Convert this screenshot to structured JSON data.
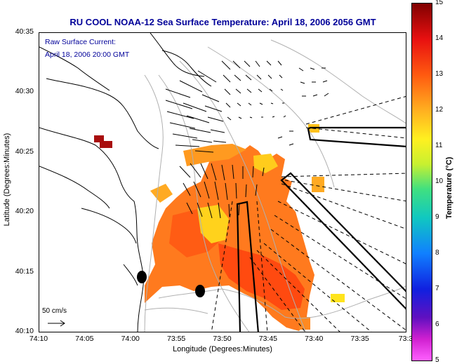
{
  "title": "RU COOL  NOAA-12  Sea Surface Temperature:  April 18, 2006 2056 GMT",
  "annotation": {
    "line1": "Raw Surface Current:",
    "line2": "April 18, 2006 20:00 GMT"
  },
  "scale_label": "50 cm/s",
  "colors": {
    "title": "#000099",
    "annotation": "#000099",
    "land_outline": "#000000",
    "bathymetry": "#b0b0b0"
  },
  "chart_data": {
    "type": "heatmap",
    "title": "RU COOL  NOAA-12  Sea Surface Temperature:  April 18, 2006 2056 GMT",
    "xlabel": "Longitude (Degrees:Minutes)",
    "ylabel": "Latitude (Degrees:Minutes)",
    "x_ticks": [
      "74:10",
      "74:05",
      "74:00",
      "73:55",
      "73:50",
      "73:45",
      "73:40",
      "73:35",
      "73:3"
    ],
    "y_ticks": [
      "40:35",
      "40:30",
      "40:25",
      "40:20",
      "40:15",
      "40:10"
    ],
    "colorbar": {
      "label": "Temperature (°C)",
      "ticks": [
        15,
        14,
        13,
        12,
        11,
        10,
        9,
        8,
        7,
        6,
        5
      ],
      "range": [
        5,
        15
      ]
    },
    "xlim": [
      "74:10",
      "73:30"
    ],
    "ylim": [
      "40:10",
      "40:35"
    ],
    "grid": false
  }
}
